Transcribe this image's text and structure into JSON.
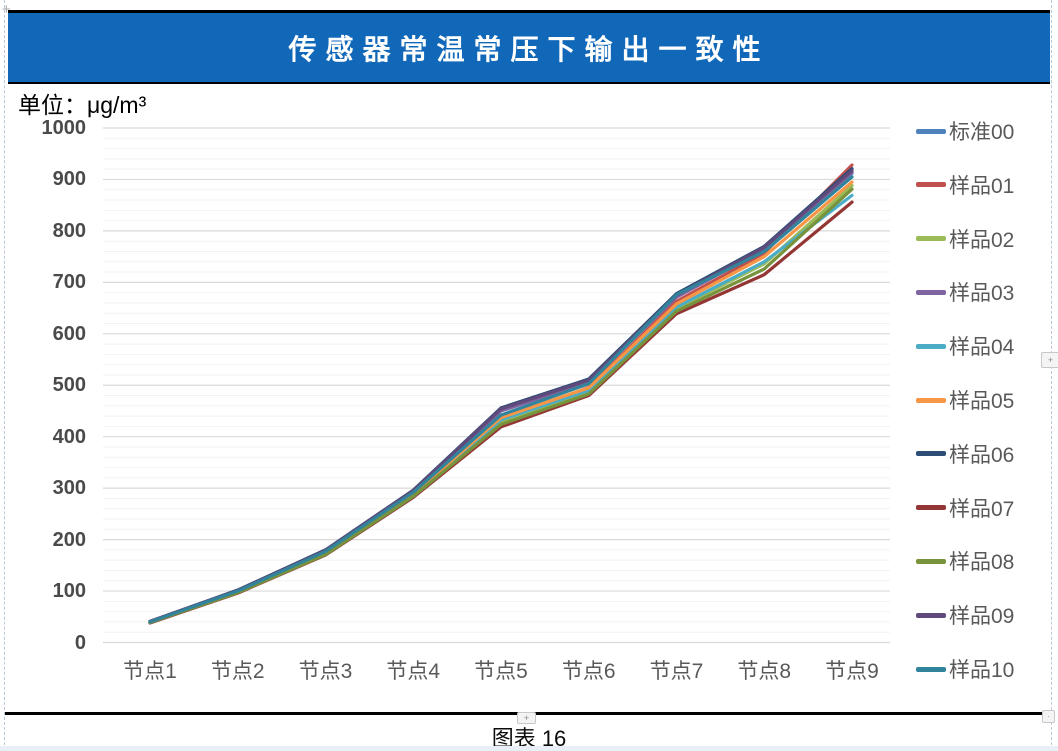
{
  "banner": {
    "title": "传感器常温常压下输出一致性",
    "background": "#1167B8"
  },
  "unit_label": "单位：μg/m³",
  "caption": "图表 16",
  "decorations": {
    "plus_badge": "+",
    "anchor_mark": "+",
    "corner_mark": "·"
  },
  "colors": {
    "grid_major": "#d9d9d9",
    "grid_minor": "#f2f2f2",
    "axis_text": "#4a4a4a",
    "legend_text": "#595959"
  },
  "chart_data": {
    "type": "line",
    "title": "传感器常温常压下输出一致性",
    "ylabel": "μg/m³",
    "ylim": [
      0,
      1000
    ],
    "ytick_step": 100,
    "minor_tick_step": 20,
    "grid": true,
    "legend_position": "right",
    "categories": [
      "节点1",
      "节点2",
      "节点3",
      "节点4",
      "节点5",
      "节点6",
      "节点7",
      "节点8",
      "节点9"
    ],
    "series": [
      {
        "name": "标准00",
        "color": "#4F81BD",
        "values": [
          40,
          100,
          178,
          293,
          452,
          508,
          674,
          767,
          912
        ]
      },
      {
        "name": "样品01",
        "color": "#C0504D",
        "values": [
          39,
          98,
          174,
          288,
          429,
          496,
          663,
          757,
          928
        ]
      },
      {
        "name": "样品02",
        "color": "#9BBB59",
        "values": [
          40,
          99,
          173,
          286,
          428,
          487,
          649,
          736,
          888
        ]
      },
      {
        "name": "样品03",
        "color": "#8064A2",
        "values": [
          41,
          101,
          179,
          294,
          450,
          506,
          671,
          764,
          914
        ]
      },
      {
        "name": "样品04",
        "color": "#4BACC6",
        "values": [
          39,
          98,
          172,
          284,
          433,
          490,
          652,
          740,
          869
        ]
      },
      {
        "name": "样品05",
        "color": "#F79646",
        "values": [
          40,
          100,
          175,
          289,
          437,
          495,
          658,
          750,
          895
        ]
      },
      {
        "name": "样品06",
        "color": "#2C4D75",
        "values": [
          41,
          102,
          180,
          296,
          456,
          512,
          678,
          770,
          921
        ]
      },
      {
        "name": "样品07",
        "color": "#943634",
        "values": [
          38,
          96,
          170,
          282,
          419,
          480,
          639,
          715,
          856
        ]
      },
      {
        "name": "样品08",
        "color": "#77933C",
        "values": [
          39,
          97,
          171,
          284,
          424,
          483,
          644,
          726,
          881
        ]
      },
      {
        "name": "样品09",
        "color": "#604A7B",
        "values": [
          41,
          101,
          179,
          295,
          454,
          510,
          675,
          768,
          917
        ]
      },
      {
        "name": "样品10",
        "color": "#31849B",
        "values": [
          40,
          100,
          177,
          292,
          442,
          503,
          676,
          760,
          905
        ]
      }
    ]
  }
}
